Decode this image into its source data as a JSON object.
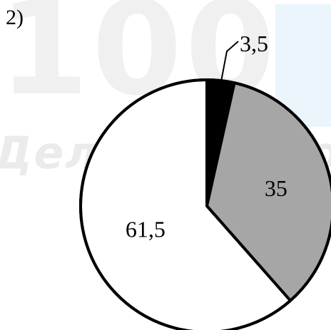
{
  "figure": {
    "label": "2)"
  },
  "watermark": {
    "logo_text": "100",
    "slogan": "Делаем нево"
  },
  "chart_data": {
    "type": "pie",
    "start": "12 o'clock, clockwise",
    "slices": [
      {
        "label": "3,5",
        "value": 3.5,
        "color": "#000000",
        "label_pos": "outside"
      },
      {
        "label": "35",
        "value": 35,
        "color": "#a6a6a6",
        "label_pos": "inside"
      },
      {
        "label": "61,5",
        "value": 61.5,
        "color": "#ffffff",
        "label_pos": "inside"
      }
    ]
  }
}
